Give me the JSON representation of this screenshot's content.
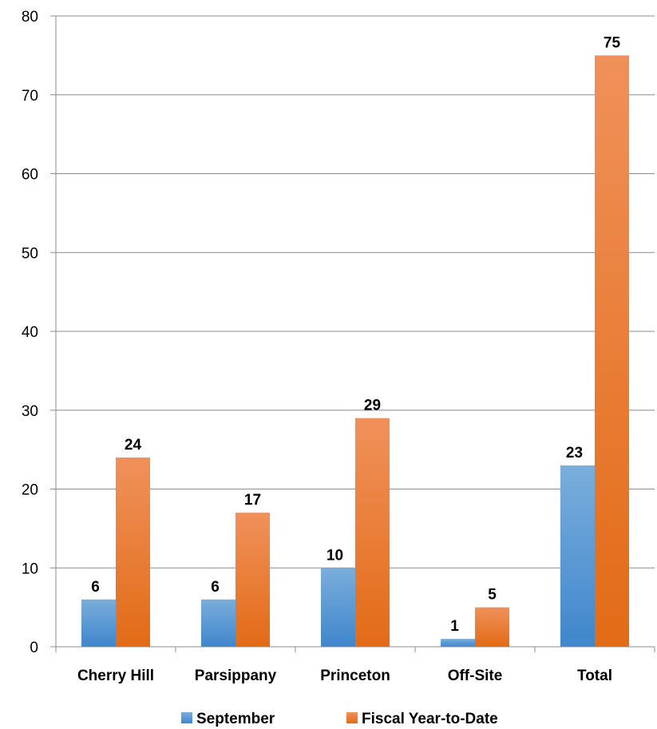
{
  "chart_data": {
    "type": "bar",
    "categories": [
      "Cherry Hill",
      "Parsippany",
      "Princeton",
      "Off-Site",
      "Total"
    ],
    "series": [
      {
        "name": "September",
        "values": [
          6,
          6,
          10,
          1,
          23
        ],
        "color": "#5B9BD5"
      },
      {
        "name": "Fiscal Year-to-Date",
        "values": [
          24,
          17,
          29,
          5,
          75
        ],
        "color": "#ED7D31"
      }
    ],
    "ylim": [
      0,
      80
    ],
    "yticks": [
      0,
      10,
      20,
      30,
      40,
      50,
      60,
      70,
      80
    ],
    "grid": true,
    "legend": "bottom",
    "data_labels": true
  }
}
